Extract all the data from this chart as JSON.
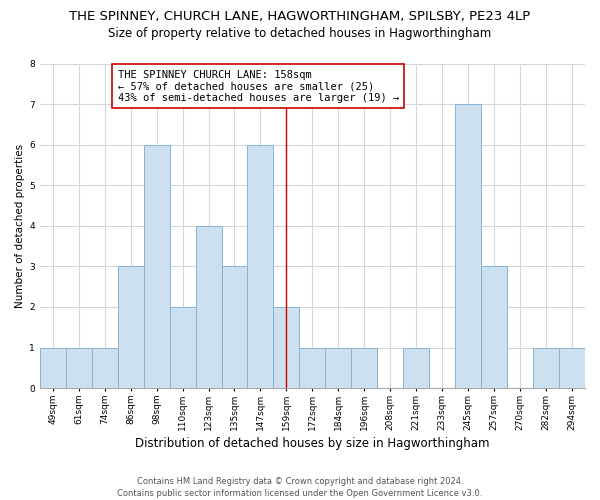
{
  "title": "THE SPINNEY, CHURCH LANE, HAGWORTHINGHAM, SPILSBY, PE23 4LP",
  "subtitle": "Size of property relative to detached houses in Hagworthingham",
  "xlabel": "Distribution of detached houses by size in Hagworthingham",
  "ylabel": "Number of detached properties",
  "categories": [
    "49sqm",
    "61sqm",
    "74sqm",
    "86sqm",
    "98sqm",
    "110sqm",
    "123sqm",
    "135sqm",
    "147sqm",
    "159sqm",
    "172sqm",
    "184sqm",
    "196sqm",
    "208sqm",
    "221sqm",
    "233sqm",
    "245sqm",
    "257sqm",
    "270sqm",
    "282sqm",
    "294sqm"
  ],
  "values": [
    1,
    1,
    1,
    3,
    6,
    2,
    4,
    3,
    6,
    2,
    1,
    1,
    1,
    0,
    1,
    0,
    7,
    3,
    0,
    1,
    1
  ],
  "bar_color": "#cde0f0",
  "bar_edge_color": "#8ab4d4",
  "reference_line_index": 9,
  "reference_line_color": "#cc0000",
  "annotation_line1": "THE SPINNEY CHURCH LANE: 158sqm",
  "annotation_line2": "← 57% of detached houses are smaller (25)",
  "annotation_line3": "43% of semi-detached houses are larger (19) →",
  "annotation_box_color": "#ffffff",
  "annotation_box_edge_color": "#cc0000",
  "ylim": [
    0,
    8
  ],
  "yticks": [
    0,
    1,
    2,
    3,
    4,
    5,
    6,
    7,
    8
  ],
  "footer_line1": "Contains HM Land Registry data © Crown copyright and database right 2024.",
  "footer_line2": "Contains public sector information licensed under the Open Government Licence v3.0.",
  "background_color": "#ffffff",
  "grid_color": "#d0d8e0",
  "title_fontsize": 9.5,
  "subtitle_fontsize": 8.5,
  "xlabel_fontsize": 8.5,
  "ylabel_fontsize": 7.5,
  "tick_fontsize": 6.5,
  "annotation_fontsize": 7.5,
  "footer_fontsize": 6.0
}
